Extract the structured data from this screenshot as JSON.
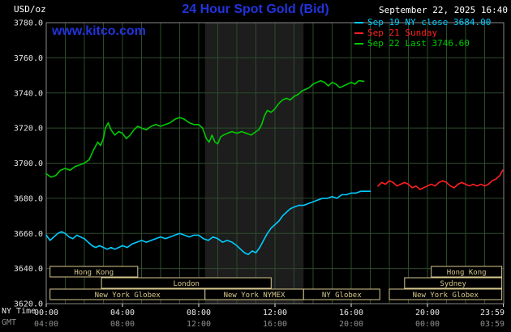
{
  "header": {
    "units": "USD/oz",
    "title": "24 Hour Spot Gold (Bid)",
    "watermark": "www.kitco.com",
    "timestamp": "September 22, 2025 16:40"
  },
  "legend": {
    "items": [
      {
        "label": "Sep 19 NY close 3684.00",
        "color": "#00ccff"
      },
      {
        "label": "Sep 21 Sunday",
        "color": "#ff2020"
      },
      {
        "label": "Sep 22 Last 3746.60",
        "color": "#00cc00"
      }
    ]
  },
  "axes": {
    "ny_time_label": "NY Time",
    "gmt_label": "GMT"
  },
  "chart_data": {
    "type": "line",
    "title": "24 Hour Spot Gold (Bid)",
    "ylabel": "USD/oz",
    "ylim": [
      3620,
      3780
    ],
    "xlim_hours": [
      0,
      24
    ],
    "grid": true,
    "yticks": [
      3620,
      3640,
      3660,
      3680,
      3700,
      3720,
      3740,
      3760,
      3780
    ],
    "ytick_labels": [
      "3620.0",
      "3640.0",
      "3660.0",
      "3680.0",
      "3700.0",
      "3720.0",
      "3740.0",
      "3760.0",
      "3780.0"
    ],
    "xticks": [
      {
        "h": 0,
        "ny": "00:00",
        "gmt": "04:00"
      },
      {
        "h": 4,
        "ny": "04:00",
        "gmt": "08:00"
      },
      {
        "h": 8,
        "ny": "08:00",
        "gmt": "12:00"
      },
      {
        "h": 12,
        "ny": "12:00",
        "gmt": "16:00"
      },
      {
        "h": 16,
        "ny": "16:00",
        "gmt": "20:00"
      },
      {
        "h": 20,
        "ny": "20:00",
        "gmt": "00:00"
      },
      {
        "h": 23.983,
        "ny": "23:59",
        "gmt": "03:59"
      }
    ],
    "session_band_hours": [
      8.33,
      13.5
    ],
    "colors": {
      "band": "#1d1d1d",
      "grid": "#2d4b2d",
      "frame": "#888888",
      "session": "#d8c98e",
      "axis_text": "#e6e6e6",
      "axis_text_dim": "#8f8f8f"
    },
    "series": [
      {
        "name": "Sep 19 NY close",
        "color": "#00ccff",
        "points": [
          [
            0,
            3659
          ],
          [
            0.2,
            3656
          ],
          [
            0.4,
            3658
          ],
          [
            0.6,
            3660
          ],
          [
            0.8,
            3661
          ],
          [
            1,
            3660
          ],
          [
            1.2,
            3658
          ],
          [
            1.4,
            3657
          ],
          [
            1.6,
            3659
          ],
          [
            1.8,
            3658
          ],
          [
            2,
            3657
          ],
          [
            2.2,
            3655
          ],
          [
            2.4,
            3653
          ],
          [
            2.6,
            3652
          ],
          [
            2.8,
            3653
          ],
          [
            3,
            3652
          ],
          [
            3.2,
            3651
          ],
          [
            3.4,
            3652
          ],
          [
            3.6,
            3651
          ],
          [
            3.8,
            3652
          ],
          [
            4,
            3653
          ],
          [
            4.25,
            3652
          ],
          [
            4.5,
            3654
          ],
          [
            4.75,
            3655
          ],
          [
            5,
            3656
          ],
          [
            5.25,
            3655
          ],
          [
            5.5,
            3656
          ],
          [
            5.75,
            3657
          ],
          [
            6,
            3658
          ],
          [
            6.25,
            3657
          ],
          [
            6.5,
            3658
          ],
          [
            6.75,
            3659
          ],
          [
            7,
            3660
          ],
          [
            7.25,
            3659
          ],
          [
            7.5,
            3658
          ],
          [
            7.75,
            3659
          ],
          [
            8,
            3659
          ],
          [
            8.25,
            3657
          ],
          [
            8.5,
            3656
          ],
          [
            8.75,
            3658
          ],
          [
            9,
            3657
          ],
          [
            9.25,
            3655
          ],
          [
            9.5,
            3656
          ],
          [
            9.75,
            3655
          ],
          [
            10,
            3653
          ],
          [
            10.2,
            3651
          ],
          [
            10.4,
            3649
          ],
          [
            10.6,
            3648
          ],
          [
            10.8,
            3650
          ],
          [
            11,
            3649
          ],
          [
            11.2,
            3652
          ],
          [
            11.4,
            3656
          ],
          [
            11.6,
            3660
          ],
          [
            11.8,
            3663
          ],
          [
            12,
            3665
          ],
          [
            12.2,
            3667
          ],
          [
            12.4,
            3670
          ],
          [
            12.6,
            3672
          ],
          [
            12.8,
            3674
          ],
          [
            13,
            3675
          ],
          [
            13.25,
            3676
          ],
          [
            13.5,
            3676
          ],
          [
            13.75,
            3677
          ],
          [
            14,
            3678
          ],
          [
            14.25,
            3679
          ],
          [
            14.5,
            3680
          ],
          [
            14.75,
            3680
          ],
          [
            15,
            3681
          ],
          [
            15.25,
            3680
          ],
          [
            15.5,
            3682
          ],
          [
            15.75,
            3682
          ],
          [
            16,
            3683
          ],
          [
            16.25,
            3683
          ],
          [
            16.5,
            3684
          ],
          [
            17,
            3684
          ]
        ]
      },
      {
        "name": "Sep 21 Sunday",
        "color": "#ff2020",
        "points": [
          [
            17.4,
            3687
          ],
          [
            17.6,
            3689
          ],
          [
            17.8,
            3688
          ],
          [
            18,
            3690
          ],
          [
            18.2,
            3689
          ],
          [
            18.4,
            3687
          ],
          [
            18.6,
            3688
          ],
          [
            18.8,
            3689
          ],
          [
            19,
            3688
          ],
          [
            19.2,
            3686
          ],
          [
            19.4,
            3687
          ],
          [
            19.6,
            3685
          ],
          [
            19.8,
            3686
          ],
          [
            20,
            3687
          ],
          [
            20.2,
            3688
          ],
          [
            20.4,
            3687
          ],
          [
            20.6,
            3689
          ],
          [
            20.8,
            3690
          ],
          [
            21,
            3689
          ],
          [
            21.2,
            3687
          ],
          [
            21.4,
            3686
          ],
          [
            21.6,
            3688
          ],
          [
            21.8,
            3689
          ],
          [
            22,
            3688
          ],
          [
            22.2,
            3687
          ],
          [
            22.4,
            3688
          ],
          [
            22.6,
            3687
          ],
          [
            22.8,
            3688
          ],
          [
            23,
            3687
          ],
          [
            23.2,
            3688
          ],
          [
            23.4,
            3690
          ],
          [
            23.6,
            3691
          ],
          [
            23.8,
            3693
          ],
          [
            23.95,
            3696
          ]
        ]
      },
      {
        "name": "Sep 22",
        "color": "#00cc00",
        "points": [
          [
            0,
            3694
          ],
          [
            0.25,
            3692
          ],
          [
            0.5,
            3693
          ],
          [
            0.75,
            3696
          ],
          [
            1,
            3697
          ],
          [
            1.25,
            3696
          ],
          [
            1.5,
            3698
          ],
          [
            1.75,
            3699
          ],
          [
            2,
            3700
          ],
          [
            2.25,
            3702
          ],
          [
            2.5,
            3708
          ],
          [
            2.7,
            3712
          ],
          [
            2.85,
            3710
          ],
          [
            3,
            3714
          ],
          [
            3.1,
            3720
          ],
          [
            3.25,
            3723
          ],
          [
            3.4,
            3719
          ],
          [
            3.6,
            3716
          ],
          [
            3.8,
            3718
          ],
          [
            4,
            3717
          ],
          [
            4.2,
            3714
          ],
          [
            4.4,
            3716
          ],
          [
            4.6,
            3719
          ],
          [
            4.8,
            3721
          ],
          [
            5,
            3720
          ],
          [
            5.25,
            3719
          ],
          [
            5.5,
            3721
          ],
          [
            5.75,
            3722
          ],
          [
            6,
            3721
          ],
          [
            6.25,
            3722
          ],
          [
            6.5,
            3723
          ],
          [
            6.75,
            3725
          ],
          [
            7,
            3726
          ],
          [
            7.25,
            3725
          ],
          [
            7.5,
            3723
          ],
          [
            7.75,
            3722
          ],
          [
            8,
            3722
          ],
          [
            8.2,
            3720
          ],
          [
            8.4,
            3714
          ],
          [
            8.55,
            3712
          ],
          [
            8.7,
            3716
          ],
          [
            8.85,
            3712
          ],
          [
            9,
            3711
          ],
          [
            9.15,
            3715
          ],
          [
            9.3,
            3716
          ],
          [
            9.5,
            3717
          ],
          [
            9.75,
            3718
          ],
          [
            10,
            3717
          ],
          [
            10.25,
            3718
          ],
          [
            10.5,
            3717
          ],
          [
            10.75,
            3716
          ],
          [
            11,
            3718
          ],
          [
            11.15,
            3719
          ],
          [
            11.3,
            3722
          ],
          [
            11.45,
            3727
          ],
          [
            11.6,
            3730
          ],
          [
            11.8,
            3729
          ],
          [
            12,
            3731
          ],
          [
            12.2,
            3734
          ],
          [
            12.4,
            3736
          ],
          [
            12.6,
            3737
          ],
          [
            12.8,
            3736
          ],
          [
            13,
            3738
          ],
          [
            13.2,
            3739
          ],
          [
            13.4,
            3741
          ],
          [
            13.6,
            3742
          ],
          [
            13.8,
            3743
          ],
          [
            14,
            3745
          ],
          [
            14.2,
            3746
          ],
          [
            14.4,
            3747
          ],
          [
            14.6,
            3746
          ],
          [
            14.8,
            3744
          ],
          [
            15,
            3746
          ],
          [
            15.2,
            3745
          ],
          [
            15.4,
            3743
          ],
          [
            15.6,
            3744
          ],
          [
            15.8,
            3745
          ],
          [
            16,
            3746
          ],
          [
            16.2,
            3745
          ],
          [
            16.4,
            3747
          ],
          [
            16.67,
            3746.6
          ]
        ]
      }
    ],
    "sessions": [
      {
        "row": 0,
        "label": "Hong Kong",
        "start": 0.2,
        "end": 4.8
      },
      {
        "row": 0,
        "label": "Hong Kong",
        "start": 20.2,
        "end": 23.9
      },
      {
        "row": 1,
        "label": "London",
        "start": 2.9,
        "end": 11.8
      },
      {
        "row": 1,
        "label": "Sydney",
        "start": 18.8,
        "end": 23.9
      },
      {
        "row": 2,
        "label": "New York Globex",
        "start": 0.2,
        "end": 8.33
      },
      {
        "row": 2,
        "label": "New York NYMEX",
        "start": 8.33,
        "end": 13.5
      },
      {
        "row": 2,
        "label": "NY Globex",
        "start": 13.5,
        "end": 17.5
      },
      {
        "row": 2,
        "label": "New York Globex",
        "start": 18.0,
        "end": 23.9
      }
    ]
  }
}
